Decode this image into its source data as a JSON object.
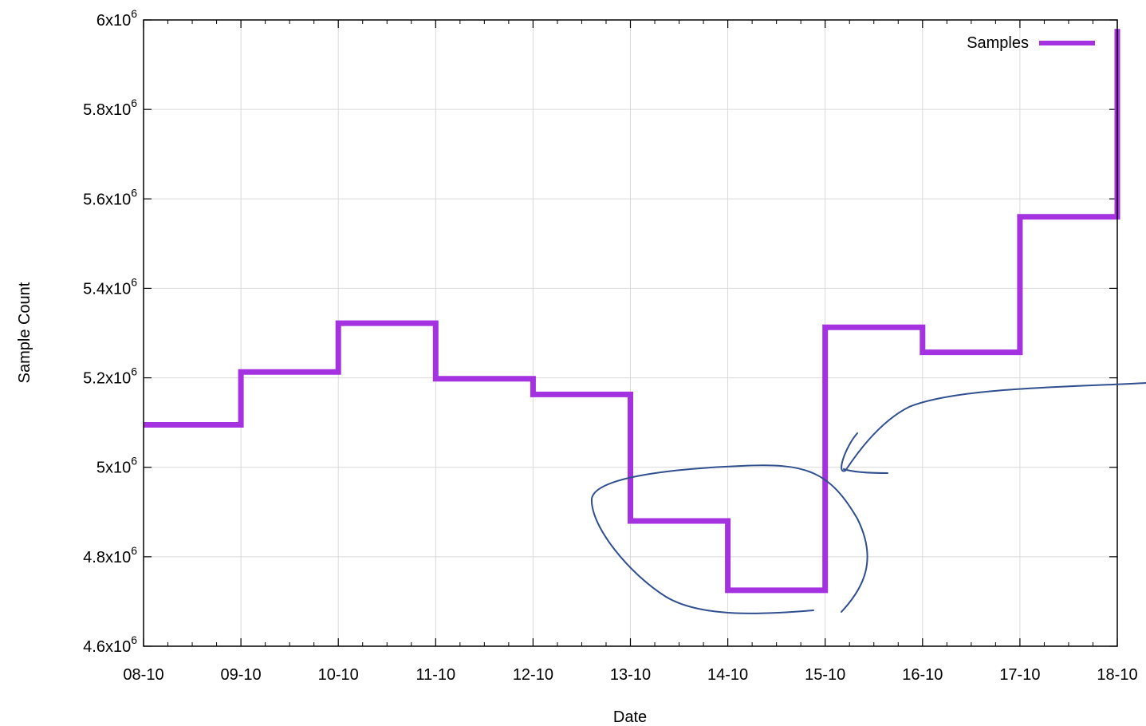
{
  "chart_data": {
    "type": "line",
    "step": true,
    "title": "",
    "xlabel": "Date",
    "ylabel": "Sample Count",
    "x_ticks": [
      "08-10",
      "09-10",
      "10-10",
      "11-10",
      "12-10",
      "13-10",
      "14-10",
      "15-10",
      "16-10",
      "17-10",
      "18-10"
    ],
    "y_ticks": [
      {
        "value": 4600000,
        "mantissa": "4.6",
        "exp": "6"
      },
      {
        "value": 4800000,
        "mantissa": "4.8",
        "exp": "6"
      },
      {
        "value": 5000000,
        "mantissa": "5",
        "exp": "6"
      },
      {
        "value": 5200000,
        "mantissa": "5.2",
        "exp": "6"
      },
      {
        "value": 5400000,
        "mantissa": "5.4",
        "exp": "6"
      },
      {
        "value": 5600000,
        "mantissa": "5.6",
        "exp": "6"
      },
      {
        "value": 5800000,
        "mantissa": "5.8",
        "exp": "6"
      },
      {
        "value": 6000000,
        "mantissa": "6",
        "exp": "6"
      }
    ],
    "ylim": [
      4600000,
      6000000
    ],
    "grid": true,
    "legend_position": "top-right",
    "series": [
      {
        "name": "Samples",
        "color": "#a432e0",
        "x": [
          "08-10",
          "09-10",
          "10-10",
          "11-10",
          "12-10",
          "12-10",
          "13-10",
          "14-10",
          "15-10",
          "16-10",
          "16-10",
          "17-10",
          "18-10"
        ],
        "values": [
          5095000,
          5213000,
          5322000,
          5198000,
          5198000,
          5163000,
          4880000,
          4725000,
          5313000,
          5313000,
          5257000,
          5560000,
          5980000
        ]
      }
    ]
  }
}
